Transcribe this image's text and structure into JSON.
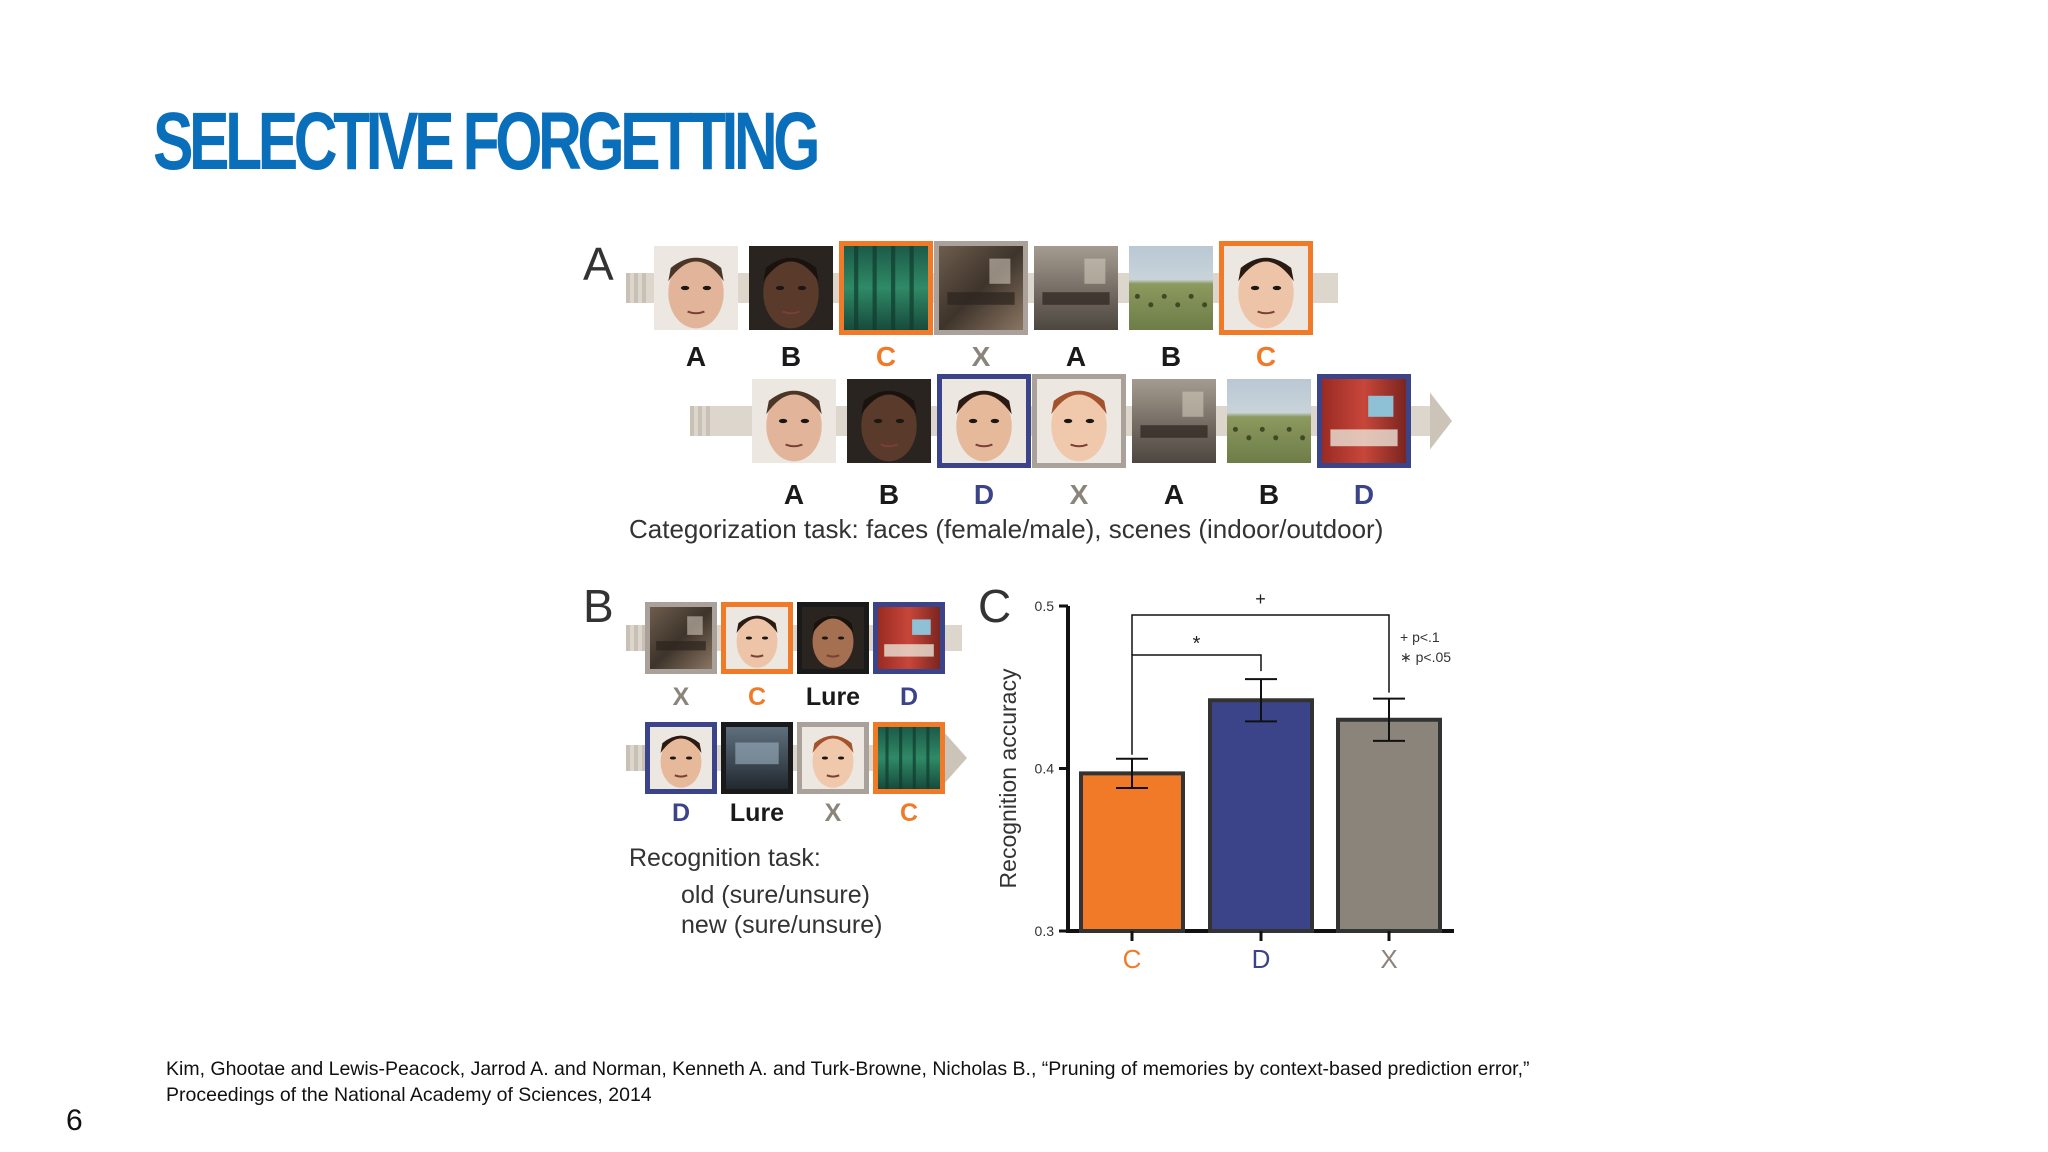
{
  "slide": {
    "title": "SELECTIVE FORGETTING",
    "page_number": "6",
    "citation": [
      "Kim, Ghootae and Lewis-Peacock, Jarrod A. and Norman, Kenneth A. and Turk-Browne, Nicholas B., “Pruning of memories by context-based prediction error,”",
      "Proceedings of the National Academy of Sciences, 2014"
    ]
  },
  "colors": {
    "title": "#0a6fba",
    "C": "#f07a28",
    "D": "#3c4489",
    "X": "#8a847b",
    "lure": "#1a1a1a"
  },
  "panel_a": {
    "label": "A",
    "row1": [
      {
        "label": "A",
        "kind": "face-male",
        "frame": "none"
      },
      {
        "label": "B",
        "kind": "face-dark",
        "frame": "none"
      },
      {
        "label": "C",
        "kind": "scene-forest",
        "frame": "C"
      },
      {
        "label": "X",
        "kind": "scene-indoor",
        "frame": "X"
      },
      {
        "label": "A",
        "kind": "scene-indoor2",
        "frame": "none"
      },
      {
        "label": "B",
        "kind": "scene-field",
        "frame": "none"
      },
      {
        "label": "C",
        "kind": "face-female",
        "frame": "C"
      }
    ],
    "row2": [
      {
        "label": "A",
        "kind": "face-male",
        "frame": "none"
      },
      {
        "label": "B",
        "kind": "face-dark",
        "frame": "none"
      },
      {
        "label": "D",
        "kind": "face-female2",
        "frame": "D"
      },
      {
        "label": "X",
        "kind": "face-female3",
        "frame": "X"
      },
      {
        "label": "A",
        "kind": "scene-indoor2",
        "frame": "none"
      },
      {
        "label": "B",
        "kind": "scene-field",
        "frame": "none"
      },
      {
        "label": "D",
        "kind": "scene-kitchen",
        "frame": "D"
      }
    ],
    "caption": "Categorization task:  faces (female/male), scenes (indoor/outdoor)"
  },
  "panel_b": {
    "label": "B",
    "row1": [
      {
        "label": "X",
        "kind": "scene-indoor",
        "frame": "X"
      },
      {
        "label": "C",
        "kind": "face-female",
        "frame": "C"
      },
      {
        "label": "Lure",
        "kind": "face-dark2",
        "frame": "lure"
      },
      {
        "label": "D",
        "kind": "scene-kitchen",
        "frame": "D"
      }
    ],
    "row2": [
      {
        "label": "D",
        "kind": "face-female2",
        "frame": "D"
      },
      {
        "label": "Lure",
        "kind": "scene-room",
        "frame": "lure"
      },
      {
        "label": "X",
        "kind": "face-female3",
        "frame": "X"
      },
      {
        "label": "C",
        "kind": "scene-forest",
        "frame": "C"
      }
    ],
    "caption": [
      "Recognition task:",
      "old (sure/unsure)",
      "new (sure/unsure)"
    ]
  },
  "chart_data": {
    "type": "bar",
    "panel_label": "C",
    "categories": [
      "C",
      "D",
      "X"
    ],
    "values": [
      0.397,
      0.442,
      0.43
    ],
    "errors": [
      0.009,
      0.013,
      0.013
    ],
    "ylabel": "Recognition accuracy",
    "ylim": [
      0.3,
      0.5
    ],
    "yticks": [
      "0.3",
      "0.4",
      "0.5"
    ],
    "bar_colors": [
      "#f07a28",
      "#3c4489",
      "#8a847b"
    ],
    "significance": [
      {
        "pair": [
          "C",
          "D"
        ],
        "marker": "*"
      },
      {
        "pair": [
          "C",
          "X"
        ],
        "marker": "+"
      }
    ],
    "legend": [
      "+  p<.1",
      "∗  p<.05"
    ]
  }
}
